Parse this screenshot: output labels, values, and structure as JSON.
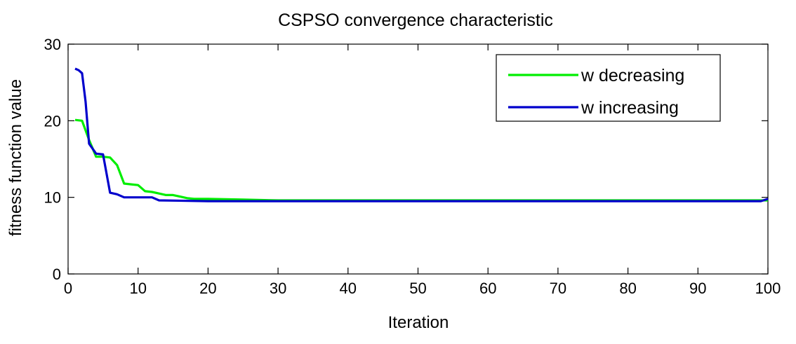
{
  "chart_data": {
    "type": "line",
    "title": "CSPSO convergence characteristic",
    "xlabel": "Iteration",
    "ylabel": "fitness function value",
    "xlim": [
      0,
      100
    ],
    "ylim": [
      0,
      30
    ],
    "xticks": [
      0,
      10,
      20,
      30,
      40,
      50,
      60,
      70,
      80,
      90,
      100
    ],
    "yticks": [
      0,
      10,
      20,
      30
    ],
    "grid": false,
    "legend_position": "top-right",
    "series": [
      {
        "name": "w decreasing",
        "color": "#00ee00",
        "x": [
          1,
          2,
          3,
          4,
          5,
          6,
          7,
          8,
          9,
          10,
          11,
          12,
          13,
          14,
          15,
          16,
          17,
          18,
          20,
          25,
          30,
          40,
          50,
          60,
          70,
          80,
          90,
          100
        ],
        "y": [
          20.1,
          20.0,
          17.5,
          15.3,
          15.3,
          15.2,
          14.2,
          11.8,
          11.7,
          11.6,
          10.8,
          10.7,
          10.5,
          10.3,
          10.3,
          10.1,
          9.9,
          9.8,
          9.8,
          9.7,
          9.6,
          9.6,
          9.6,
          9.6,
          9.6,
          9.6,
          9.6,
          9.6
        ]
      },
      {
        "name": "w increasing",
        "color": "#0000cc",
        "x": [
          1,
          1.5,
          2,
          2.5,
          3,
          4,
          5,
          6,
          7,
          8,
          10,
          12,
          13,
          20,
          30,
          40,
          50,
          60,
          70,
          80,
          90,
          99,
          100
        ],
        "y": [
          26.8,
          26.6,
          26.2,
          22.5,
          17.0,
          15.7,
          15.6,
          10.6,
          10.4,
          10.0,
          10.0,
          10.0,
          9.6,
          9.5,
          9.5,
          9.5,
          9.5,
          9.5,
          9.5,
          9.5,
          9.5,
          9.5,
          9.8
        ]
      }
    ]
  }
}
